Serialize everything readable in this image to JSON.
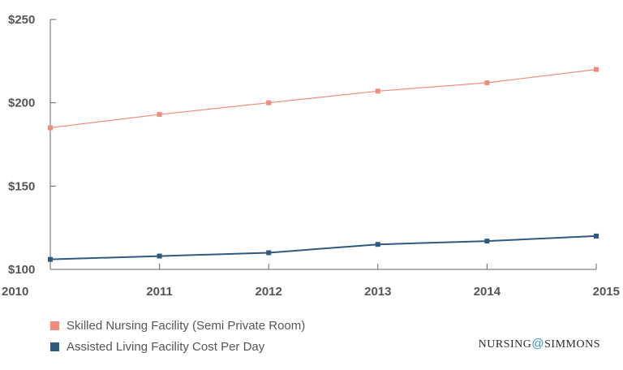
{
  "chart_data": {
    "type": "line",
    "title": "",
    "xlabel": "",
    "ylabel": "",
    "categories": [
      "2010",
      "2011",
      "2012",
      "2013",
      "2014",
      "2015"
    ],
    "ylim": [
      100,
      250
    ],
    "yticks": [
      100,
      150,
      200,
      250
    ],
    "ytick_labels": [
      "$100",
      "$150",
      "$200",
      "$250"
    ],
    "grid": false,
    "legend": "bottom-left",
    "series": [
      {
        "name": "Skilled Nursing Facility (Semi Private Room)",
        "color": "#f28b7c",
        "values": [
          185,
          193,
          200,
          207,
          212,
          220
        ]
      },
      {
        "name": "Assisted Living Facility Cost Per Day",
        "color": "#2e5a7f",
        "values": [
          106,
          108,
          110,
          115,
          117,
          120
        ]
      }
    ]
  },
  "brand": {
    "left": "NURSING",
    "at": "@",
    "right": "SIMMONS"
  }
}
